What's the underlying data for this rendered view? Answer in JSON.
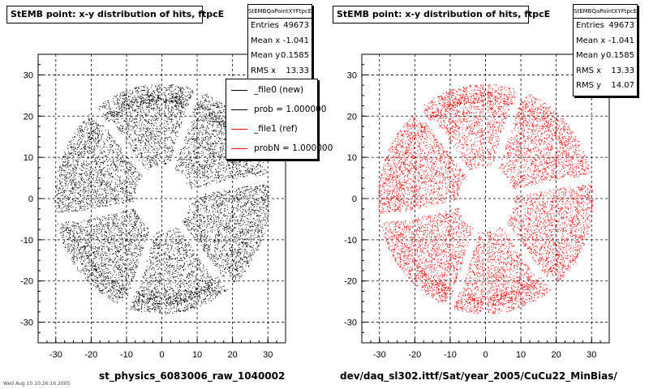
{
  "chart_data": [
    {
      "type": "scatter",
      "title": "StEMB point: x-y distribution of hits, ftpcE",
      "xlabel": "st_physics_6083006_raw_1040002",
      "ylabel": "",
      "xlim": [
        -35,
        35
      ],
      "ylim": [
        -35,
        35
      ],
      "xticks": [
        -30,
        -20,
        -10,
        0,
        10,
        20,
        30
      ],
      "yticks": [
        -30,
        -20,
        -10,
        0,
        10,
        20,
        30
      ],
      "grid": true,
      "color": "#000000",
      "series": [
        {
          "marker": "dot",
          "distribution": {
            "center": [
              0,
              0
            ],
            "inner_radius": 8,
            "outer_radius": 31,
            "gap_angles_deg": [
              10,
              70,
              130,
              190,
              250,
              310
            ],
            "extra_gaps": {
              "x_near_zero": [
                0,
                30
              ],
              "radial_lines_upper": true
            }
          }
        }
      ],
      "stats": {
        "name": "StEMBQaPointXYFtpcE",
        "rows": [
          {
            "label": "Entries",
            "value": "49673"
          },
          {
            "label": "Mean x",
            "value": "-1.041"
          },
          {
            "label": "Mean y",
            "value": "0.1585"
          },
          {
            "label": "RMS x",
            "value": "13.33"
          }
        ]
      },
      "legend": {
        "position": "top-right",
        "entries": [
          {
            "label": "_file0 (new)",
            "color": "#000000"
          },
          {
            "label": "prob = 1.000000",
            "color": "#000000"
          },
          {
            "label": "_file1 (ref)",
            "color": "#ff0000"
          },
          {
            "label": "probN = 1.000000",
            "color": "#ff0000"
          }
        ]
      }
    },
    {
      "type": "scatter",
      "title": "StEMB point: x-y distribution of hits, ftpcE",
      "xlabel": "dev/daq_sl302.ittf/Sat/year_2005/CuCu22_MinBias/",
      "ylabel": "",
      "xlim": [
        -35,
        35
      ],
      "ylim": [
        -35,
        35
      ],
      "xticks": [
        -30,
        -20,
        -10,
        0,
        10,
        20,
        30
      ],
      "yticks": [
        -30,
        -20,
        -10,
        0,
        10,
        20,
        30
      ],
      "grid": true,
      "color": "#ff0000",
      "series": [
        {
          "marker": "dot",
          "distribution": {
            "center": [
              0,
              0
            ],
            "inner_radius": 8,
            "outer_radius": 31,
            "gap_angles_deg": [
              10,
              70,
              130,
              190,
              250,
              310
            ]
          }
        }
      ],
      "stats": {
        "name": "StEMBQaPointXYFtpcE",
        "rows": [
          {
            "label": "Entries",
            "value": "49673"
          },
          {
            "label": "Mean x",
            "value": "-1.041"
          },
          {
            "label": "Mean y",
            "value": "0.1585"
          },
          {
            "label": "RMS x",
            "value": "13.33"
          },
          {
            "label": "RMS y",
            "value": "14.07"
          }
        ]
      }
    }
  ],
  "footnote": "Wed Aug 10 10:26:16 2005"
}
